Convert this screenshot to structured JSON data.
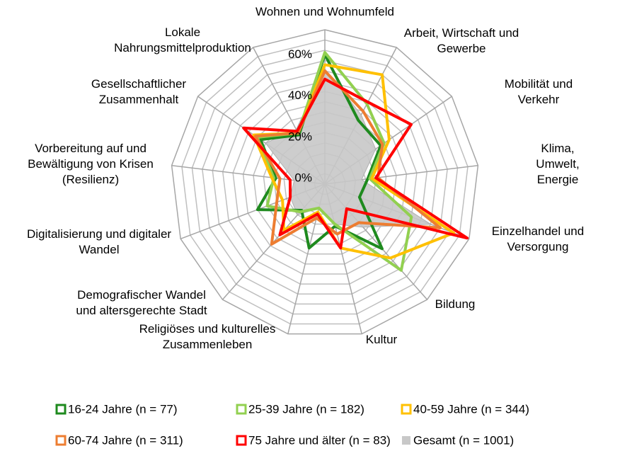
{
  "chart_data": {
    "type": "radar",
    "categories": [
      "Wohnen und Wohnumfeld",
      "Arbeit, Wirtschaft und\nGewerbe",
      "Mobilität und Verkehr",
      "Klima, Umwelt, Energie",
      "Einzelhandel und\nVersorgung",
      "Bildung",
      "Kultur",
      "Religiöses und kulturelles\nZusammenleben",
      "Demografischer Wandel\nund altersgerechte Stadt",
      "Digitalisierung und digitaler\nWandel",
      "Vorbereitung auf und\nBewältigung von Krisen\n(Resilienz)",
      "Gesellschaftlicher\nZusammenhalt",
      "Lokale\nNahrungsmittelproduktion"
    ],
    "series": [
      {
        "name": "16-24 Jahre (n = 77)",
        "color": "#1e8a1e",
        "values": [
          63,
          35,
          33,
          21,
          18,
          42,
          21,
          32,
          17,
          35,
          24,
          38,
          27
        ]
      },
      {
        "name": "25-39 Jahre (n = 182)",
        "color": "#92d050",
        "values": [
          64,
          44,
          35,
          22,
          45,
          56,
          20,
          12,
          18,
          30,
          25,
          40,
          28
        ]
      },
      {
        "name": "40-59 Jahre (n = 344)",
        "color": "#ffc000",
        "values": [
          58,
          60,
          38,
          23,
          67,
          48,
          32,
          14,
          30,
          22,
          26,
          42,
          28
        ]
      },
      {
        "name": "60-74 Jahre (n = 311)",
        "color": "#ed7d31",
        "values": [
          55,
          40,
          34,
          26,
          60,
          25,
          25,
          17,
          39,
          25,
          22,
          41,
          28
        ]
      },
      {
        "name": "75 Jahre und älter (n = 83)",
        "color": "#ff0000",
        "values": [
          51,
          45,
          51,
          25,
          74,
          16,
          32,
          15,
          33,
          18,
          17,
          48,
          29
        ]
      },
      {
        "name": "Gesamt (n = 1001)",
        "color": "#c8c8c8",
        "fill": true,
        "values": [
          56,
          38,
          30,
          18,
          55,
          28,
          20,
          12,
          20,
          18,
          15,
          35,
          30
        ]
      }
    ],
    "ylim": [
      0,
      75
    ],
    "yticks": [
      {
        "value": 0,
        "label": "0%"
      },
      {
        "value": 20,
        "label": "20%"
      },
      {
        "value": 40,
        "label": "40%"
      },
      {
        "value": 60,
        "label": "60%"
      }
    ],
    "grid_rings": [
      5,
      10,
      15,
      20,
      25,
      30,
      35,
      40,
      45,
      50,
      55,
      60,
      65,
      70,
      75
    ],
    "legend": "bottom"
  }
}
